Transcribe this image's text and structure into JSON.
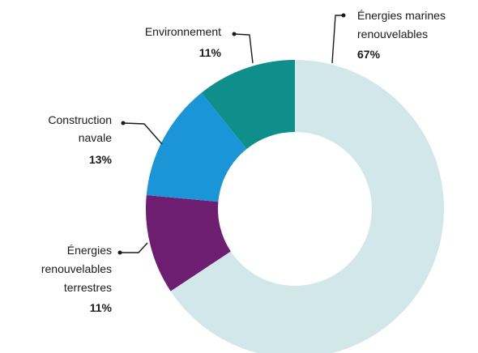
{
  "chart_data": {
    "type": "pie",
    "donut": true,
    "title": "",
    "legend": "none",
    "series": [
      {
        "values": [
          67,
          11,
          13,
          11
        ],
        "categories": [
          "Énergies marines renouvelables",
          "Énergies renouvelables terrestres",
          "Construction navale",
          "Environnement"
        ],
        "colors": [
          "#d2e7e9",
          "#6e1e70",
          "#1a96d8",
          "#0f8f8c"
        ]
      }
    ]
  },
  "labels": {
    "marines": {
      "lines": [
        "Énergies marines",
        "renouvelables"
      ],
      "pct": "67%"
    },
    "terrestres": {
      "lines": [
        "Énergies",
        "renouvelables",
        "terrestres"
      ],
      "pct": "11%"
    },
    "navale": {
      "lines": [
        "Construction",
        "navale"
      ],
      "pct": "13%"
    },
    "environnement": {
      "lines": [
        "Environnement"
      ],
      "pct": "11%"
    }
  }
}
